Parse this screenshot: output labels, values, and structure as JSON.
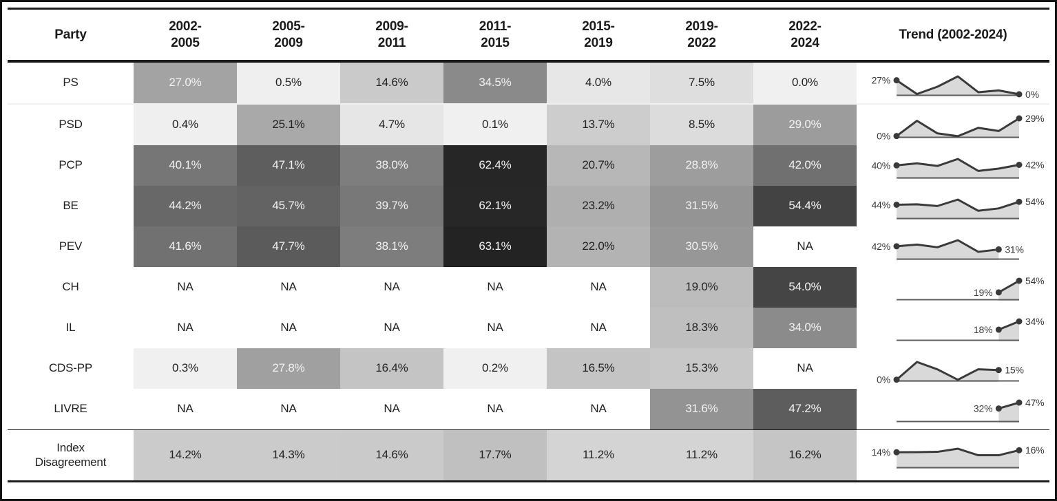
{
  "frame": {
    "border_color": "#111111",
    "background": "#ffffff",
    "rule_color": "#1a1a1a"
  },
  "heat_style": {
    "low_gray": 240,
    "gray_range": 205,
    "max_value": 63.1,
    "exponent": 1.15,
    "white_text_cutoff": 167,
    "na_background": "#ffffff",
    "text_dark": "#222222",
    "text_light": "#f2f2f2"
  },
  "spark_style": {
    "line_color": "#3a3a3a",
    "dot_color": "#3a3a3a",
    "area_color": "#d9d9d9",
    "baseline_color": "#606060",
    "label_color": "#3a3a3a"
  },
  "chart_data": {
    "type": "heatmap",
    "legend_position": "none",
    "grid": false,
    "value_unit": "%",
    "columns": [
      {
        "id": "party",
        "lines": [
          "Party"
        ]
      },
      {
        "id": "2002-2005",
        "lines": [
          "2002-",
          "2005"
        ]
      },
      {
        "id": "2005-2009",
        "lines": [
          "2005-",
          "2009"
        ]
      },
      {
        "id": "2009-2011",
        "lines": [
          "2009-",
          "2011"
        ]
      },
      {
        "id": "2011-2015",
        "lines": [
          "2011-",
          "2015"
        ]
      },
      {
        "id": "2015-2019",
        "lines": [
          "2015-",
          "2019"
        ]
      },
      {
        "id": "2019-2022",
        "lines": [
          "2019-",
          "2022"
        ]
      },
      {
        "id": "2022-2024",
        "lines": [
          "2022-",
          "2024"
        ]
      },
      {
        "id": "trend",
        "lines": [
          "Trend (2002-2024)"
        ]
      }
    ],
    "rows": [
      {
        "id": "ps",
        "party_lines": [
          "PS"
        ],
        "values": [
          27.0,
          0.5,
          14.6,
          34.5,
          4.0,
          7.5,
          0.0
        ],
        "display": [
          "27.0%",
          "0.5%",
          "14.6%",
          "34.5%",
          "4.0%",
          "7.5%",
          "0.0%"
        ],
        "trend_start_label": "27%",
        "trend_end_label": "0%"
      },
      {
        "id": "psd",
        "party_lines": [
          "PSD"
        ],
        "values": [
          0.4,
          25.1,
          4.7,
          0.1,
          13.7,
          8.5,
          29.0
        ],
        "display": [
          "0.4%",
          "25.1%",
          "4.7%",
          "0.1%",
          "13.7%",
          "8.5%",
          "29.0%"
        ],
        "trend_start_label": "0%",
        "trend_end_label": "29%"
      },
      {
        "id": "pcp",
        "party_lines": [
          "PCP"
        ],
        "values": [
          40.1,
          47.1,
          38.0,
          62.4,
          20.7,
          28.8,
          42.0
        ],
        "display": [
          "40.1%",
          "47.1%",
          "38.0%",
          "62.4%",
          "20.7%",
          "28.8%",
          "42.0%"
        ],
        "trend_start_label": "40%",
        "trend_end_label": "42%"
      },
      {
        "id": "be",
        "party_lines": [
          "BE"
        ],
        "values": [
          44.2,
          45.7,
          39.7,
          62.1,
          23.2,
          31.5,
          54.4
        ],
        "display": [
          "44.2%",
          "45.7%",
          "39.7%",
          "62.1%",
          "23.2%",
          "31.5%",
          "54.4%"
        ],
        "trend_start_label": "44%",
        "trend_end_label": "54%"
      },
      {
        "id": "pev",
        "party_lines": [
          "PEV"
        ],
        "values": [
          41.6,
          47.7,
          38.1,
          63.1,
          22.0,
          30.5,
          null
        ],
        "display": [
          "41.6%",
          "47.7%",
          "38.1%",
          "63.1%",
          "22.0%",
          "30.5%",
          "NA"
        ],
        "trend_start_label": "42%",
        "trend_end_label": "31%"
      },
      {
        "id": "ch",
        "party_lines": [
          "CH"
        ],
        "values": [
          null,
          null,
          null,
          null,
          null,
          19.0,
          54.0
        ],
        "display": [
          "NA",
          "NA",
          "NA",
          "NA",
          "NA",
          "19.0%",
          "54.0%"
        ],
        "trend_start_label": "19%",
        "trend_end_label": "54%"
      },
      {
        "id": "il",
        "party_lines": [
          "IL"
        ],
        "values": [
          null,
          null,
          null,
          null,
          null,
          18.3,
          34.0
        ],
        "display": [
          "NA",
          "NA",
          "NA",
          "NA",
          "NA",
          "18.3%",
          "34.0%"
        ],
        "trend_start_label": "18%",
        "trend_end_label": "34%"
      },
      {
        "id": "cds-pp",
        "party_lines": [
          "CDS-PP"
        ],
        "values": [
          0.3,
          27.8,
          16.4,
          0.2,
          16.5,
          15.3,
          null
        ],
        "display": [
          "0.3%",
          "27.8%",
          "16.4%",
          "0.2%",
          "16.5%",
          "15.3%",
          "NA"
        ],
        "trend_start_label": "0%",
        "trend_end_label": "15%"
      },
      {
        "id": "livre",
        "party_lines": [
          "LIVRE"
        ],
        "values": [
          null,
          null,
          null,
          null,
          null,
          31.6,
          47.2
        ],
        "display": [
          "NA",
          "NA",
          "NA",
          "NA",
          "NA",
          "31.6%",
          "47.2%"
        ],
        "trend_start_label": "32%",
        "trend_end_label": "47%"
      }
    ],
    "footer_row": {
      "id": "index-disagreement",
      "party_lines": [
        "Index",
        "Disagreement"
      ],
      "values": [
        14.2,
        14.3,
        14.6,
        17.7,
        11.2,
        11.2,
        16.2
      ],
      "display": [
        "14.2%",
        "14.3%",
        "14.6%",
        "17.7%",
        "11.2%",
        "11.2%",
        "16.2%"
      ],
      "trend_start_label": "14%",
      "trend_end_label": "16%"
    }
  }
}
